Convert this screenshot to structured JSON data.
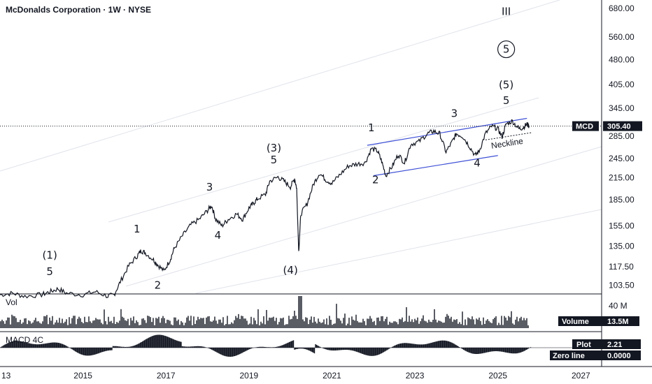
{
  "chart_data": {
    "type": "line",
    "title": "McDonalds Corporation · 1W · NYSE",
    "symbol": "MCD",
    "last_price": "305.40",
    "scale": "log",
    "ylim": [
      98,
      720
    ],
    "xlim": [
      2013.0,
      2027.5
    ],
    "y_ticks": [
      "680.00",
      "560.00",
      "480.00",
      "405.00",
      "345.00",
      "285.00",
      "245.00",
      "215.00",
      "185.00",
      "155.00",
      "135.00",
      "117.50",
      "103.50"
    ],
    "x_ticks": [
      {
        "label": "13",
        "year": 2013
      },
      {
        "label": "2015",
        "year": 2015
      },
      {
        "label": "2017",
        "year": 2017
      },
      {
        "label": "2019",
        "year": 2019
      },
      {
        "label": "2021",
        "year": 2021
      },
      {
        "label": "2023",
        "year": 2023
      },
      {
        "label": "2025",
        "year": 2025
      },
      {
        "label": "2027",
        "year": 2027
      }
    ],
    "series": [
      {
        "points": [
          [
            2013.0,
            97
          ],
          [
            2013.3,
            98
          ],
          [
            2013.6,
            96
          ],
          [
            2014.0,
            97
          ],
          [
            2014.2,
            99
          ],
          [
            2014.4,
            101
          ],
          [
            2014.6,
            98
          ],
          [
            2015.0,
            97
          ],
          [
            2015.3,
            99
          ],
          [
            2015.6,
            96
          ],
          [
            2015.75,
            97
          ],
          [
            2015.9,
            106
          ],
          [
            2016.1,
            118
          ],
          [
            2016.3,
            126
          ],
          [
            2016.4,
            131
          ],
          [
            2016.5,
            129
          ],
          [
            2016.7,
            123
          ],
          [
            2016.8,
            119
          ],
          [
            2016.95,
            114
          ],
          [
            2017.1,
            123
          ],
          [
            2017.2,
            133
          ],
          [
            2017.4,
            145
          ],
          [
            2017.6,
            156
          ],
          [
            2017.8,
            162
          ],
          [
            2018.0,
            172
          ],
          [
            2018.1,
            178
          ],
          [
            2018.2,
            162
          ],
          [
            2018.35,
            155
          ],
          [
            2018.5,
            162
          ],
          [
            2018.7,
            168
          ],
          [
            2018.85,
            162
          ],
          [
            2019.0,
            175
          ],
          [
            2019.1,
            180
          ],
          [
            2019.2,
            186
          ],
          [
            2019.4,
            192
          ],
          [
            2019.5,
            210
          ],
          [
            2019.7,
            216
          ],
          [
            2019.85,
            210
          ],
          [
            2020.0,
            202
          ],
          [
            2020.1,
            214
          ],
          [
            2020.15,
            200
          ],
          [
            2020.2,
            130
          ],
          [
            2020.25,
            168
          ],
          [
            2020.4,
            180
          ],
          [
            2020.55,
            205
          ],
          [
            2020.7,
            222
          ],
          [
            2020.85,
            212
          ],
          [
            2021.0,
            207
          ],
          [
            2021.2,
            220
          ],
          [
            2021.4,
            233
          ],
          [
            2021.6,
            236
          ],
          [
            2021.8,
            238
          ],
          [
            2021.95,
            262
          ],
          [
            2022.1,
            258
          ],
          [
            2022.2,
            240
          ],
          [
            2022.3,
            218
          ],
          [
            2022.45,
            232
          ],
          [
            2022.6,
            252
          ],
          [
            2022.75,
            238
          ],
          [
            2022.9,
            270
          ],
          [
            2023.1,
            275
          ],
          [
            2023.3,
            290
          ],
          [
            2023.45,
            295
          ],
          [
            2023.6,
            290
          ],
          [
            2023.75,
            256
          ],
          [
            2023.9,
            275
          ],
          [
            2024.0,
            290
          ],
          [
            2024.15,
            285
          ],
          [
            2024.3,
            268
          ],
          [
            2024.45,
            250
          ],
          [
            2024.55,
            258
          ],
          [
            2024.7,
            290
          ],
          [
            2024.85,
            305
          ],
          [
            2025.0,
            300
          ],
          [
            2025.1,
            284
          ],
          [
            2025.2,
            310
          ],
          [
            2025.35,
            316
          ],
          [
            2025.5,
            300
          ],
          [
            2025.6,
            302
          ],
          [
            2025.7,
            310
          ],
          [
            2025.75,
            305.4
          ]
        ]
      }
    ],
    "wave_labels": [
      {
        "text": "(1)",
        "x": 2014.2,
        "y": 124
      },
      {
        "text": "5",
        "x": 2014.2,
        "y": 111
      },
      {
        "text": "2",
        "x": 2016.8,
        "y": 101
      },
      {
        "text": "1",
        "x": 2016.3,
        "y": 148
      },
      {
        "text": "3",
        "x": 2018.05,
        "y": 197
      },
      {
        "text": "4",
        "x": 2018.25,
        "y": 142
      },
      {
        "text": "(3)",
        "x": 2019.6,
        "y": 257
      },
      {
        "text": "5",
        "x": 2019.6,
        "y": 237
      },
      {
        "text": "(4)",
        "x": 2020.0,
        "y": 112
      },
      {
        "text": "1",
        "x": 2021.95,
        "y": 295
      },
      {
        "text": "2",
        "x": 2022.05,
        "y": 207
      },
      {
        "text": "3",
        "x": 2023.95,
        "y": 325
      },
      {
        "text": "4",
        "x": 2024.5,
        "y": 232
      },
      {
        "text": "(5)",
        "x": 2025.2,
        "y": 395
      },
      {
        "text": "5",
        "x": 2025.2,
        "y": 355
      },
      {
        "text": "III",
        "x": 2025.2,
        "y": 650
      }
    ],
    "circled_label": {
      "text": "5",
      "x": 2025.2,
      "y": 515
    },
    "neckline_label": "Neckline",
    "volume_panel": {
      "label": "Vol",
      "tick": "40 M",
      "legend_label": "Volume",
      "legend_value": "13.5M"
    },
    "macd_panel": {
      "label": "MACD 4C",
      "plot_label": "Plot",
      "plot_value": "2.21",
      "zero_label": "Zero line",
      "zero_value": "0.0000"
    }
  },
  "colors": {
    "price": "#131722",
    "channel": "#3f51d6",
    "fan": "#e0e3eb",
    "tag_bg": "#131722",
    "grid_line": "#131722"
  }
}
